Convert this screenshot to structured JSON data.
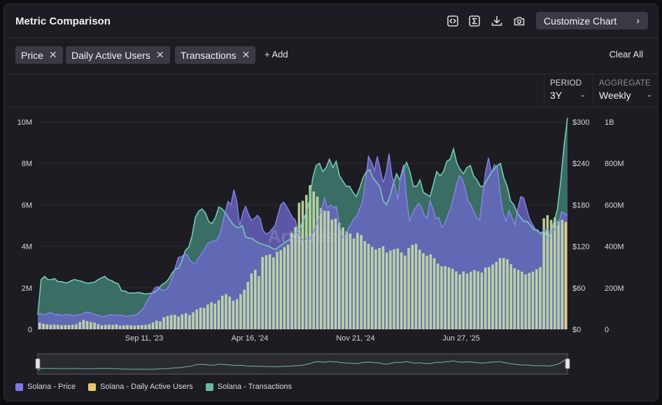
{
  "header": {
    "title": "Metric Comparison",
    "customize_label": "Customize Chart",
    "chevron": "›"
  },
  "toolbar_icons": [
    "code-embed-icon",
    "sigma-icon",
    "download-icon",
    "camera-icon"
  ],
  "tags": [
    {
      "label": "Price",
      "remove": "✕"
    },
    {
      "label": "Daily Active Users",
      "remove": "✕"
    },
    {
      "label": "Transactions",
      "remove": "✕"
    }
  ],
  "add_label": "+ Add",
  "clear_label": "Clear All",
  "period": {
    "label": "PERIOD",
    "value": "3Y"
  },
  "aggregate": {
    "label": "AGGREGATE",
    "value": "Weekly"
  },
  "watermark": "Artemis",
  "legend": [
    {
      "label": "Solana - Price",
      "color": "#7b78e6"
    },
    {
      "label": "Solana - Daily Active Users",
      "color": "#e7c96b"
    },
    {
      "label": "Solana - Transactions",
      "color": "#6bb8a8"
    }
  ],
  "chart_data": {
    "type": "line",
    "title": "Metric Comparison",
    "x_ticks": [
      "Sep 11, '23",
      "Apr 16, '24",
      "Nov 21, '24",
      "Jun 27, '25"
    ],
    "y_axes": {
      "dau": {
        "ticks": [
          "0",
          "2M",
          "4M",
          "6M",
          "8M",
          "10M"
        ],
        "range": [
          0,
          10000000
        ]
      },
      "price": {
        "ticks": [
          "$0",
          "$60",
          "$120",
          "$180",
          "$240",
          "$300"
        ],
        "range": [
          0,
          300
        ]
      },
      "transactions": {
        "ticks": [
          "0",
          "200M",
          "400M",
          "600M",
          "800M",
          "1B"
        ],
        "range": [
          0,
          1000000000
        ]
      }
    },
    "grid": true,
    "legend_position": "bottom-left",
    "series": [
      {
        "name": "Solana - Price",
        "axis": "price",
        "color": "#7b78e6",
        "values": [
          22,
          23,
          21,
          22,
          24,
          23,
          21,
          22,
          20,
          21,
          22,
          21,
          20,
          20,
          21,
          22,
          24,
          25,
          24,
          22,
          21,
          20,
          18,
          19,
          20,
          21,
          21,
          20,
          21,
          20,
          19,
          19,
          20,
          20,
          22,
          26,
          30,
          38,
          45,
          52,
          60,
          62,
          58,
          56,
          58,
          64,
          75,
          90,
          104,
          105,
          108,
          108,
          100,
          96,
          96,
          104,
          110,
          116,
          124,
          126,
          128,
          128,
          136,
          150,
          170,
          185,
          180,
          202,
          185,
          150,
          168,
          178,
          167,
          158,
          160,
          165,
          160,
          143,
          138,
          140,
          145,
          150,
          165,
          180,
          184,
          178,
          170,
          162,
          158,
          140,
          132,
          128,
          132,
          130,
          140,
          150,
          160,
          175,
          190,
          175,
          180,
          176,
          178,
          152,
          133,
          135,
          145,
          152,
          160,
          164,
          175,
          185,
          215,
          250,
          242,
          230,
          250,
          232,
          212,
          227,
          254,
          222,
          208,
          188,
          222,
          238,
          190,
          156,
          168,
          175,
          182,
          178,
          165,
          160,
          186,
          175,
          160,
          162,
          148,
          152,
          164,
          175,
          190,
          208,
          222,
          218,
          205,
          186,
          180,
          170,
          162,
          158,
          195,
          228,
          248,
          226,
          238,
          235,
          195,
          168,
          156,
          172,
          162,
          151,
          174,
          192,
          190,
          175,
          160,
          152,
          145,
          140,
          140,
          142,
          145,
          140,
          142,
          145,
          155,
          170,
          168,
          165
        ],
        "type": "area"
      },
      {
        "name": "Solana - Daily Active Users",
        "axis": "dau",
        "color": "#e7c96b",
        "values": [
          320,
          270,
          240,
          220,
          230,
          220,
          200,
          205,
          210,
          220,
          250,
          350,
          450,
          400,
          350,
          320,
          250,
          200,
          210,
          230,
          220,
          240,
          180,
          190,
          210,
          200,
          180,
          200,
          210,
          220,
          250,
          330,
          420,
          380,
          580,
          650,
          690,
          700,
          610,
          720,
          780,
          690,
          820,
          960,
          1050,
          1040,
          1200,
          1310,
          1240,
          1400,
          1620,
          1700,
          1580,
          1380,
          1460,
          1700,
          1910,
          2290,
          2700,
          2880,
          2560,
          3490,
          3570,
          3610,
          3470,
          3740,
          3820,
          3960,
          4080,
          4650,
          4940,
          6100,
          6200,
          6480,
          6950,
          6650,
          6400,
          5850,
          5720,
          5710,
          5290,
          5340,
          5150,
          4910,
          4720,
          4620,
          4380,
          4660,
          4550,
          4250,
          4120,
          3980,
          3850,
          3920,
          4010,
          3700,
          3800,
          3860,
          3900,
          3710,
          3560,
          3920,
          4070,
          4120,
          3840,
          3670,
          3550,
          3610,
          3430,
          3170,
          3040,
          3050,
          2990,
          2920,
          2790,
          2650,
          2790,
          2690,
          2780,
          2850,
          2800,
          2740,
          2980,
          3000,
          3120,
          3250,
          3430,
          3440,
          3380,
          3140,
          2950,
          2860,
          2780,
          2650,
          2720,
          2780,
          2900,
          3000,
          5350,
          5500,
          5280,
          5400,
          5220,
          5280,
          5180
        ],
        "bars": true
      },
      {
        "name": "Solana - Transactions",
        "axis": "transactions",
        "color": "#6bb8a8",
        "values": [
          70,
          240,
          255,
          240,
          240,
          245,
          230,
          230,
          225,
          225,
          235,
          240,
          235,
          232,
          225,
          222,
          225,
          228,
          240,
          248,
          255,
          240,
          235,
          225,
          220,
          185,
          185,
          175,
          175,
          175,
          178,
          175,
          170,
          172,
          175,
          180,
          195,
          215,
          225,
          242,
          270,
          290,
          295,
          330,
          380,
          395,
          450,
          540,
          570,
          580,
          560,
          520,
          510,
          540,
          590,
          580,
          560,
          535,
          510,
          495,
          490,
          500,
          445,
          440,
          438,
          425,
          415,
          410,
          405,
          400,
          390,
          385,
          400,
          410,
          422,
          432,
          440,
          470,
          480,
          520,
          560,
          620,
          730,
          790,
          800,
          760,
          780,
          820,
          780,
          810,
          740,
          715,
          690,
          690,
          660,
          640,
          680,
          730,
          760,
          770,
          730,
          710,
          690,
          620,
          600,
          640,
          700,
          750,
          720,
          770,
          805,
          760,
          690,
          690,
          720,
          660,
          650,
          640,
          700,
          760,
          740,
          760,
          810,
          820,
          870,
          800,
          770,
          750,
          780,
          790,
          740,
          720,
          690,
          690,
          720,
          750,
          770,
          790,
          800,
          730,
          690,
          620,
          600,
          560,
          540,
          520,
          520,
          500,
          480,
          480,
          460,
          480,
          440,
          460,
          520,
          580,
          720,
          890,
          1060
        ]
      }
    ]
  }
}
